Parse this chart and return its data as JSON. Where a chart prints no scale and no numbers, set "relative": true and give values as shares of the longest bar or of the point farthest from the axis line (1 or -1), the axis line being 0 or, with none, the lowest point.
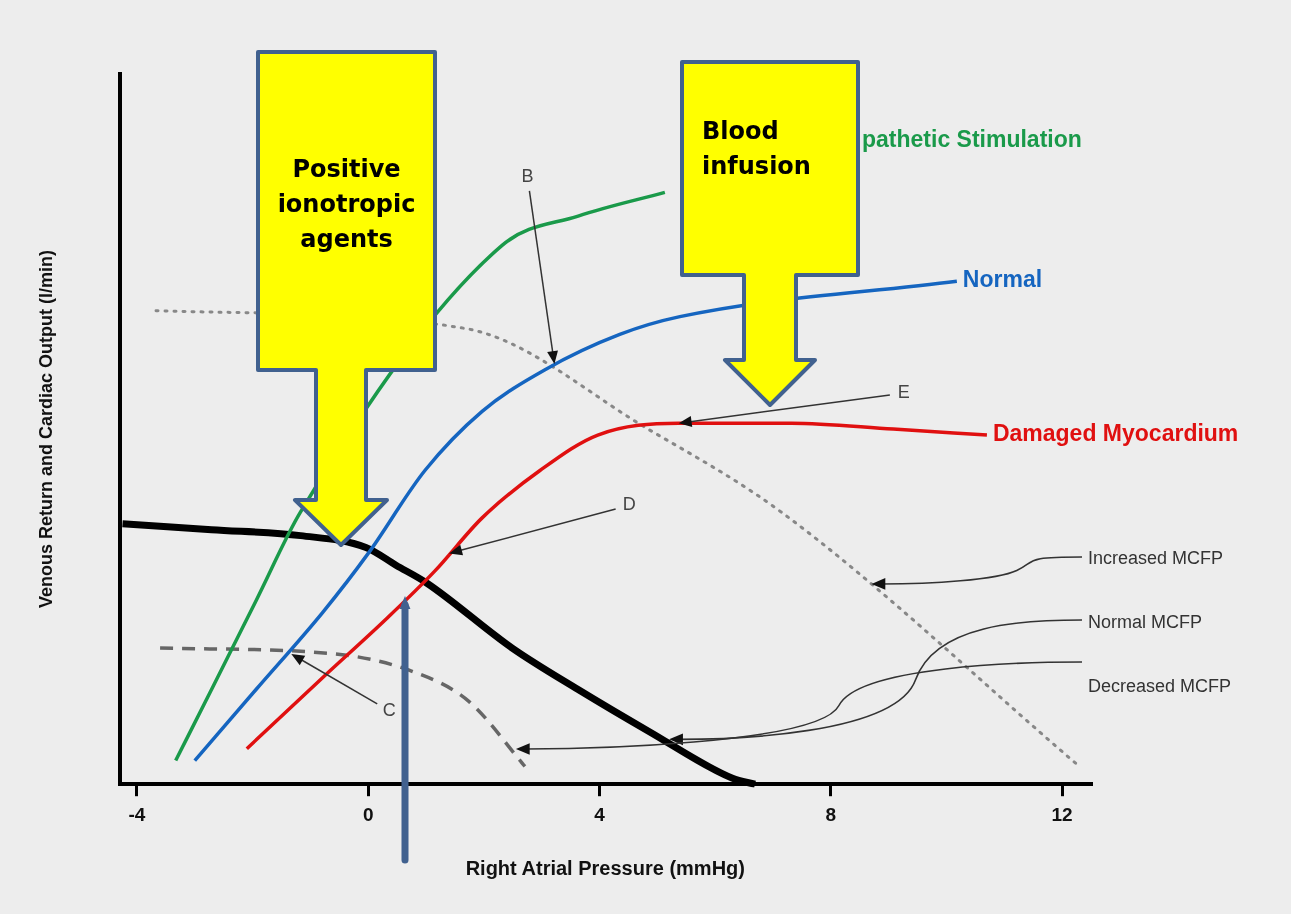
{
  "chart_data": {
    "type": "line",
    "relative": true,
    "xlabel": "Right Atrial Pressure (mmHg)",
    "ylabel": "Venous Return and Cardiac Output (l/min)",
    "xlim": [
      -4.3,
      12.5
    ],
    "xticks": [
      -4,
      0,
      4,
      8,
      12
    ],
    "grid": false,
    "legend": false,
    "marker": "none",
    "series": [
      {
        "name": "pathetic Stimulation",
        "color": "#1a9a4a",
        "line_style": "solid",
        "x": [
          -3.33,
          -2.71,
          -1.94,
          -1.17,
          -0.4,
          0.32,
          1.31,
          2.31,
          3.63,
          5.13
        ],
        "values": [
          0.04,
          0.16,
          0.31,
          0.46,
          null,
          null,
          null,
          0.91,
          0.96,
          1.0
        ]
      },
      {
        "name": "Normal",
        "color": "#1565c0",
        "line_style": "solid",
        "x": [
          -3.0,
          -1.94,
          -0.79,
          0,
          0.98,
          1.97,
          3.05,
          4.35,
          5.39,
          7.14,
          10.18
        ],
        "values": [
          0.04,
          0.16,
          0.29,
          0.39,
          0.53,
          0.63,
          0.7,
          0.76,
          0.79,
          null,
          0.85
        ]
      },
      {
        "name": "Damaged Myocardium",
        "color": "#e01010",
        "line_style": "solid",
        "x": [
          -2.1,
          -0.79,
          0.32,
          1.15,
          1.97,
          2.97,
          3.97,
          5.37,
          7.32,
          9.08,
          10.7
        ],
        "values": [
          0.06,
          0.18,
          0.28,
          0.36,
          0.45,
          0.53,
          0.59,
          0.61,
          0.61,
          0.6,
          0.59
        ]
      },
      {
        "name": "Increased MCFP",
        "color": "#888888",
        "line_style": "dotted",
        "x": [
          -3.67,
          -1.63,
          1.68,
          4.84,
          7.14,
          12.3
        ],
        "values": [
          0.8,
          null,
          0.77,
          0.6,
          0.46,
          0.03
        ]
      },
      {
        "name": "Normal MCFP",
        "color": "#000000",
        "line_style": "solid",
        "x": [
          -4.25,
          -2.71,
          -1.17,
          -0.04,
          0.48,
          1.01,
          2.49,
          3.63,
          4.84,
          6.3,
          6.69
        ],
        "values": [
          0.44,
          0.43,
          0.42,
          0.4,
          0.37,
          0.34,
          0.23,
          0.16,
          0.09,
          0.01,
          0
        ]
      },
      {
        "name": "Decreased MCFP",
        "color": "#666666",
        "line_style": "dashed",
        "x": [
          -3.6,
          -0.56,
          0.78,
          1.74,
          2.71
        ],
        "values": [
          0.23,
          0.22,
          0.19,
          0.14,
          0.03
        ]
      }
    ],
    "annotations": [
      {
        "text": "B",
        "x": 3.22,
        "y": 0.71
      },
      {
        "text": "C",
        "x": -1.33,
        "y": 0.22
      },
      {
        "text": "D",
        "x": 1.4,
        "y": 0.39
      },
      {
        "text": "E",
        "x": 5.37,
        "y": 0.61
      },
      "Positive ionotropic agents",
      "Blood infusion"
    ]
  }
}
